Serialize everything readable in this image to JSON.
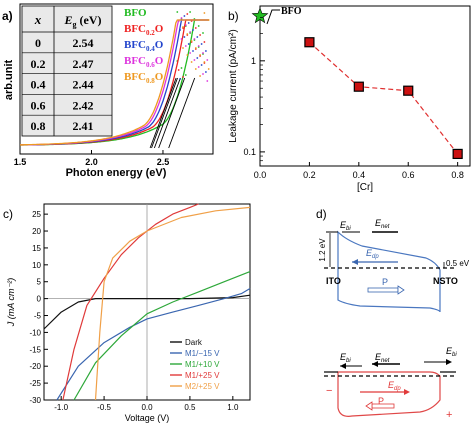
{
  "panels": {
    "a": {
      "label": "a)",
      "chart_data": {
        "type": "line",
        "xlabel": "Photon energy (eV)",
        "ylabel": "arb.unit",
        "xlim": [
          1.5,
          2.85
        ],
        "xticks": [
          "1.5",
          "2.0",
          "2.5"
        ],
        "series": [
          {
            "name": "BFO",
            "color": "#22bb22",
            "onset": 2.54
          },
          {
            "name": "BFC0.2O",
            "color": "#ee2222",
            "onset": 2.47
          },
          {
            "name": "BFC0.4O",
            "color": "#2244cc",
            "onset": 2.44
          },
          {
            "name": "BFC0.6O",
            "color": "#dd33dd",
            "onset": 2.42
          },
          {
            "name": "BFC0.8O",
            "color": "#ee9922",
            "onset": 2.41
          }
        ],
        "legend_sub": [
          "",
          "0.2",
          "0.4",
          "0.6",
          "0.8"
        ],
        "table": {
          "headers": [
            "x",
            "Eg (eV)"
          ],
          "rows": [
            [
              "0",
              "2.54"
            ],
            [
              "0.2",
              "2.47"
            ],
            [
              "0.4",
              "2.44"
            ],
            [
              "0.6",
              "2.42"
            ],
            [
              "0.8",
              "2.41"
            ]
          ]
        }
      }
    },
    "b": {
      "label": "b)",
      "chart_data": {
        "type": "scatter",
        "xlabel": "[Cr]",
        "ylabel": "Leakage current (pA/cm²)",
        "yscale": "log",
        "xlim": [
          0,
          0.85
        ],
        "ylim": [
          0.07,
          4
        ],
        "xticks": [
          "0.0",
          "0.2",
          "0.4",
          "0.6",
          "0.8"
        ],
        "yticks": [
          "0.1",
          "1"
        ],
        "annotation": "BFO",
        "points": [
          {
            "x": 0.0,
            "y": 3.1,
            "marker": "star",
            "color": "#22bb22"
          },
          {
            "x": 0.2,
            "y": 1.6,
            "marker": "square",
            "color": "#cc1111"
          },
          {
            "x": 0.4,
            "y": 0.52,
            "marker": "square",
            "color": "#cc1111"
          },
          {
            "x": 0.6,
            "y": 0.47,
            "marker": "square",
            "color": "#cc1111"
          },
          {
            "x": 0.8,
            "y": 0.095,
            "marker": "square",
            "color": "#cc1111"
          }
        ],
        "fit_color": "#e03030"
      }
    },
    "c": {
      "label": "c)",
      "chart_data": {
        "type": "line",
        "xlabel": "Voltage (V)",
        "ylabel": "J (mA cm⁻²)",
        "xlim": [
          -1.2,
          1.2
        ],
        "ylim": [
          -30,
          28
        ],
        "xticks": [
          "-1.0",
          "-0.5",
          "0.0",
          "0.5",
          "1.0"
        ],
        "yticks": [
          "-30",
          "-25",
          "-20",
          "-15",
          "-10",
          "-5",
          "0",
          "5",
          "10",
          "15",
          "20",
          "25"
        ],
        "legend_position": "bottom-right",
        "series": [
          {
            "name": "Dark",
            "color": "#111111",
            "x": [
              -1.2,
              -1.0,
              -0.8,
              -0.6,
              -0.4,
              -0.2,
              0.0,
              0.5,
              1.0,
              1.2
            ],
            "y": [
              -9,
              -4,
              -1,
              0,
              0,
              0,
              0,
              0,
              0.3,
              1
            ]
          },
          {
            "name": "M1/−15 V",
            "color": "#3a66b0",
            "x": [
              -1.05,
              -0.8,
              -0.5,
              -0.2,
              0.0,
              0.3,
              0.6,
              0.9,
              1.1,
              1.2
            ],
            "y": [
              -30,
              -20,
              -13,
              -8.5,
              -6,
              -4,
              -2,
              0,
              1.5,
              3
            ]
          },
          {
            "name": "M1/+10 V",
            "color": "#2ea83a",
            "x": [
              -0.85,
              -0.6,
              -0.3,
              0.0,
              0.3,
              0.6,
              0.9,
              1.2
            ],
            "y": [
              -30,
              -19,
              -11,
              -4.5,
              -1,
              2,
              5,
              8
            ]
          },
          {
            "name": "M1/+25 V",
            "color": "#e03a3a",
            "x": [
              -0.98,
              -0.85,
              -0.7,
              -0.5,
              -0.3,
              -0.1,
              0.1,
              0.3,
              0.5,
              0.6
            ],
            "y": [
              -30,
              -15,
              -2,
              6,
              13,
              18,
              22,
              25,
              27,
              28
            ]
          },
          {
            "name": "M2/+25 V",
            "color": "#f0a048",
            "x": [
              -0.6,
              -0.55,
              -0.5,
              -0.4,
              -0.2,
              0.0,
              0.4,
              0.8,
              1.2
            ],
            "y": [
              -30,
              -10,
              5,
              12,
              17,
              20,
              24,
              26,
              27
            ]
          }
        ]
      }
    },
    "d": {
      "label": "d)",
      "top": {
        "e_bi": "E",
        "e_bi_sub": "bi",
        "e_net": "E",
        "e_net_sub": "net",
        "e_dp": "E",
        "e_dp_sub": "dp",
        "left_height": "1.2 eV",
        "right_height": "0.5 eV",
        "left_electrode": "ITO",
        "right_electrode": "NSTO",
        "polarization": "P"
      },
      "bottom": {
        "e_bi": "E",
        "e_bi_sub": "bi",
        "e_net": "E",
        "e_net_sub": "net",
        "e_dp": "E",
        "e_dp_sub": "dp",
        "polarization": "P",
        "minus": "−",
        "plus": "+"
      },
      "colors": {
        "top_band": "#4a77c0",
        "bottom_band": "#e04848"
      }
    }
  }
}
